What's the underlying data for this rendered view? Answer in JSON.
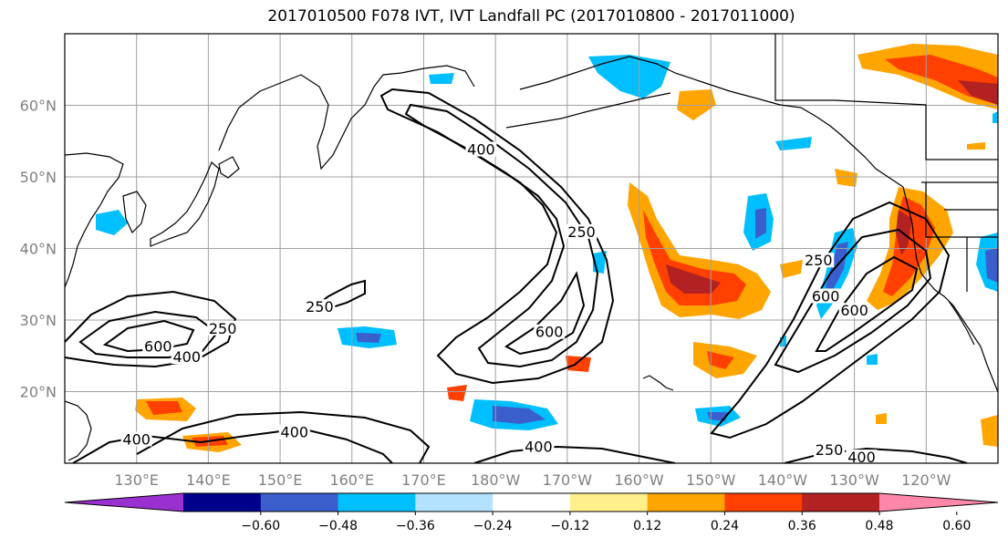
{
  "map": {
    "title": "2017010500 F078 IVT, IVT Landfall PC (2017010800 - 2017011000)",
    "extent": {
      "lon_min": 120,
      "lon_max": 250,
      "lat_min": 10,
      "lat_max": 70
    },
    "lat_ticks": [
      {
        "value": 20,
        "label": "20°N"
      },
      {
        "value": 30,
        "label": "30°N"
      },
      {
        "value": 40,
        "label": "40°N"
      },
      {
        "value": 50,
        "label": "50°N"
      },
      {
        "value": 60,
        "label": "60°N"
      }
    ],
    "lon_ticks": [
      {
        "value": 130,
        "label": "130°E"
      },
      {
        "value": 140,
        "label": "140°E"
      },
      {
        "value": 150,
        "label": "150°E"
      },
      {
        "value": 160,
        "label": "160°E"
      },
      {
        "value": 170,
        "label": "170°E"
      },
      {
        "value": 180,
        "label": "180°W"
      },
      {
        "value": 190,
        "label": "170°W"
      },
      {
        "value": 200,
        "label": "160°W"
      },
      {
        "value": 210,
        "label": "150°W"
      },
      {
        "value": 220,
        "label": "140°W"
      },
      {
        "value": 230,
        "label": "130°W"
      },
      {
        "value": 240,
        "label": "120°W"
      }
    ],
    "contour_labels": [
      {
        "text": "400",
        "lon": 178,
        "lat": 53.5
      },
      {
        "text": "250",
        "lon": 192,
        "lat": 42
      },
      {
        "text": "600",
        "lon": 187.5,
        "lat": 28
      },
      {
        "text": "250",
        "lon": 155.5,
        "lat": 31.5
      },
      {
        "text": "600",
        "lon": 133,
        "lat": 26
      },
      {
        "text": "400",
        "lon": 137,
        "lat": 24.5
      },
      {
        "text": "250",
        "lon": 142,
        "lat": 28.5
      },
      {
        "text": "400",
        "lon": 152,
        "lat": 14
      },
      {
        "text": "400",
        "lon": 130,
        "lat": 13
      },
      {
        "text": "400",
        "lon": 186,
        "lat": 12
      },
      {
        "text": "250",
        "lon": 225,
        "lat": 38
      },
      {
        "text": "600",
        "lon": 226,
        "lat": 33
      },
      {
        "text": "600",
        "lon": 230,
        "lat": 31
      },
      {
        "text": "250",
        "lon": 226.5,
        "lat": 11.5
      },
      {
        "text": "400",
        "lon": 231,
        "lat": 10.5
      }
    ]
  },
  "colorbar": {
    "colors": [
      "#9b30d0",
      "#00008b",
      "#3a5fcd",
      "#00bfff",
      "#b2e2ff",
      "#ffffff",
      "#fff08c",
      "#ffa500",
      "#ff4000",
      "#b22222",
      "#ff88aa"
    ],
    "ticks": [
      "−0.60",
      "−0.48",
      "−0.36",
      "−0.24",
      "−0.12",
      "0.12",
      "0.24",
      "0.36",
      "0.48",
      "0.60"
    ]
  }
}
